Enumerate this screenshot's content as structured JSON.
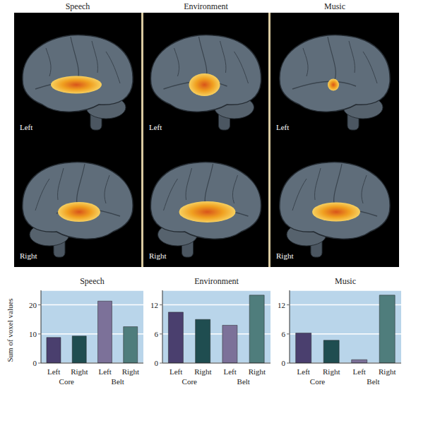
{
  "figure": {
    "panel_titles": [
      "Speech",
      "Environment",
      "Music"
    ],
    "views": [
      "Left",
      "Right"
    ]
  },
  "chart_data": [
    {
      "type": "bar",
      "title": "Speech",
      "ylabel": "Sum of voxel values",
      "categories": [
        "Left",
        "Right",
        "Left",
        "Right"
      ],
      "category_groups": [
        "Core",
        "Core",
        "Belt",
        "Belt"
      ],
      "values": [
        8.8,
        9.3,
        21.3,
        12.5
      ],
      "colors": [
        "#4a3f6e",
        "#1f4d50",
        "#7c7199",
        "#4f7d7c"
      ],
      "ylim": [
        0,
        25
      ],
      "yticks": [
        0,
        10,
        20
      ],
      "grid": true
    },
    {
      "type": "bar",
      "title": "Environment",
      "categories": [
        "Left",
        "Right",
        "Left",
        "Right"
      ],
      "category_groups": [
        "Core",
        "Core",
        "Belt",
        "Belt"
      ],
      "values": [
        10.5,
        9.0,
        7.8,
        14.0
      ],
      "colors": [
        "#4a3f6e",
        "#1f4d50",
        "#7c7199",
        "#4f7d7c"
      ],
      "ylim": [
        0,
        15
      ],
      "yticks": [
        0,
        6,
        12
      ],
      "grid": true
    },
    {
      "type": "bar",
      "title": "Music",
      "categories": [
        "Left",
        "Right",
        "Left",
        "Right"
      ],
      "category_groups": [
        "Core",
        "Core",
        "Belt",
        "Belt"
      ],
      "values": [
        6.2,
        4.7,
        0.7,
        14.0
      ],
      "colors": [
        "#4a3f6e",
        "#1f4d50",
        "#7c7199",
        "#4f7d7c"
      ],
      "ylim": [
        0,
        15
      ],
      "yticks": [
        0,
        6,
        12
      ],
      "grid": true
    }
  ]
}
